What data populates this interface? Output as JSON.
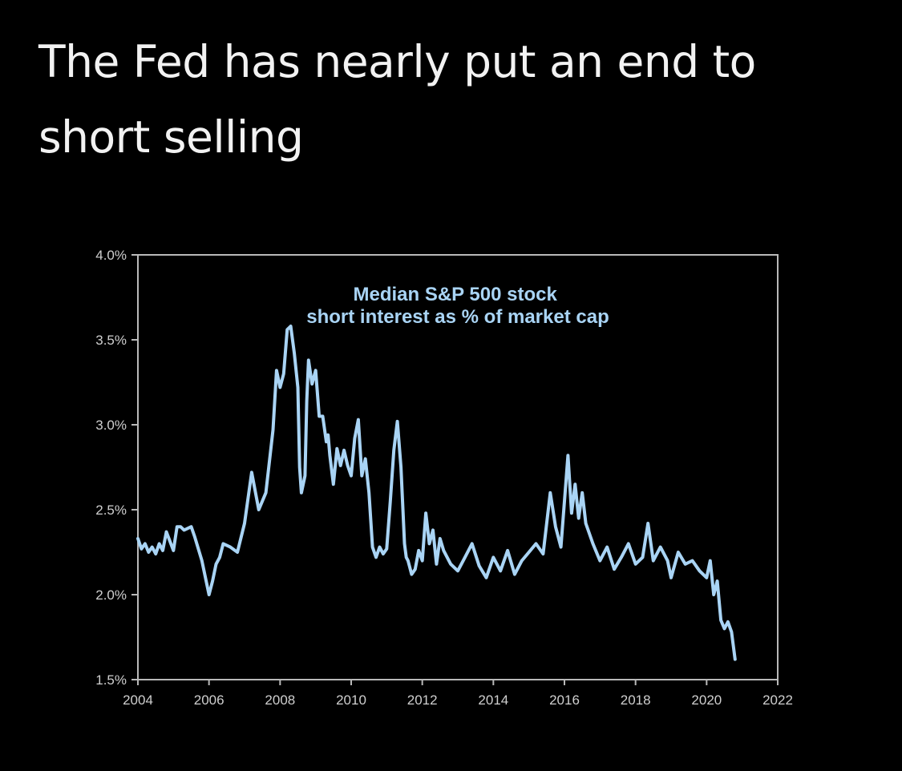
{
  "headline": "The Fed has nearly put an end to short selling",
  "chart_data": {
    "type": "line",
    "title": "",
    "xlabel": "",
    "ylabel": "",
    "annotation": [
      "Median S&P 500 stock",
      "short interest as % of market cap"
    ],
    "xlim": [
      2004,
      2022
    ],
    "ylim": [
      1.5,
      4.0
    ],
    "x_ticks": [
      2004,
      2006,
      2008,
      2010,
      2012,
      2014,
      2016,
      2018,
      2020,
      2022
    ],
    "x_tick_labels": [
      "2004",
      "2006",
      "2008",
      "2010",
      "2012",
      "2014",
      "2016",
      "2018",
      "2020",
      "2022"
    ],
    "y_ticks": [
      1.5,
      2.0,
      2.5,
      3.0,
      3.5,
      4.0
    ],
    "y_tick_labels": [
      "1.5%",
      "2.0%",
      "2.5%",
      "3.0%",
      "3.5%",
      "4.0%"
    ],
    "grid": false,
    "line_color": "#a9d4f5",
    "series": [
      {
        "x": [
          2004.0,
          2004.1,
          2004.2,
          2004.3,
          2004.4,
          2004.5,
          2004.6,
          2004.7,
          2004.8,
          2005.0,
          2005.1,
          2005.2,
          2005.3,
          2005.5,
          2005.6,
          2005.8,
          2006.0,
          2006.1,
          2006.2,
          2006.3,
          2006.4,
          2006.6,
          2006.8,
          2007.0,
          2007.2,
          2007.4,
          2007.6,
          2007.8,
          2007.9,
          2008.0,
          2008.1,
          2008.2,
          2008.3,
          2008.4,
          2008.5,
          2008.55,
          2008.6,
          2008.7,
          2008.75,
          2008.8,
          2008.9,
          2009.0,
          2009.1,
          2009.2,
          2009.3,
          2009.35,
          2009.4,
          2009.5,
          2009.6,
          2009.7,
          2009.8,
          2009.9,
          2010.0,
          2010.1,
          2010.2,
          2010.3,
          2010.4,
          2010.5,
          2010.6,
          2010.7,
          2010.8,
          2010.9,
          2011.0,
          2011.1,
          2011.2,
          2011.3,
          2011.4,
          2011.5,
          2011.55,
          2011.6,
          2011.7,
          2011.8,
          2011.9,
          2012.0,
          2012.1,
          2012.2,
          2012.3,
          2012.4,
          2012.5,
          2012.6,
          2012.8,
          2013.0,
          2013.2,
          2013.4,
          2013.6,
          2013.8,
          2014.0,
          2014.2,
          2014.4,
          2014.6,
          2014.8,
          2015.0,
          2015.2,
          2015.4,
          2015.6,
          2015.75,
          2015.9,
          2016.0,
          2016.1,
          2016.2,
          2016.3,
          2016.4,
          2016.5,
          2016.6,
          2016.8,
          2017.0,
          2017.2,
          2017.4,
          2017.6,
          2017.8,
          2018.0,
          2018.2,
          2018.35,
          2018.5,
          2018.7,
          2018.9,
          2019.0,
          2019.2,
          2019.4,
          2019.6,
          2019.8,
          2020.0,
          2020.1,
          2020.2,
          2020.3,
          2020.4,
          2020.5,
          2020.6,
          2020.7,
          2020.8
        ],
        "values": [
          2.33,
          2.27,
          2.3,
          2.25,
          2.28,
          2.24,
          2.3,
          2.26,
          2.37,
          2.26,
          2.4,
          2.4,
          2.38,
          2.4,
          2.34,
          2.2,
          2.0,
          2.08,
          2.18,
          2.22,
          2.3,
          2.28,
          2.25,
          2.42,
          2.72,
          2.5,
          2.6,
          2.97,
          3.32,
          3.22,
          3.3,
          3.56,
          3.58,
          3.42,
          3.22,
          2.75,
          2.6,
          2.7,
          3.14,
          3.38,
          3.24,
          3.32,
          3.05,
          3.05,
          2.9,
          2.94,
          2.82,
          2.65,
          2.86,
          2.76,
          2.85,
          2.76,
          2.7,
          2.92,
          3.03,
          2.7,
          2.8,
          2.6,
          2.28,
          2.22,
          2.28,
          2.24,
          2.27,
          2.55,
          2.85,
          3.02,
          2.75,
          2.3,
          2.22,
          2.2,
          2.12,
          2.15,
          2.26,
          2.2,
          2.48,
          2.3,
          2.38,
          2.18,
          2.33,
          2.26,
          2.18,
          2.14,
          2.22,
          2.3,
          2.17,
          2.1,
          2.22,
          2.14,
          2.26,
          2.12,
          2.2,
          2.25,
          2.3,
          2.24,
          2.6,
          2.4,
          2.28,
          2.55,
          2.82,
          2.48,
          2.65,
          2.45,
          2.6,
          2.42,
          2.3,
          2.2,
          2.28,
          2.15,
          2.22,
          2.3,
          2.18,
          2.22,
          2.42,
          2.2,
          2.28,
          2.2,
          2.1,
          2.25,
          2.18,
          2.2,
          2.14,
          2.1,
          2.2,
          2.0,
          2.08,
          1.85,
          1.8,
          1.84,
          1.78,
          1.62
        ]
      }
    ]
  }
}
